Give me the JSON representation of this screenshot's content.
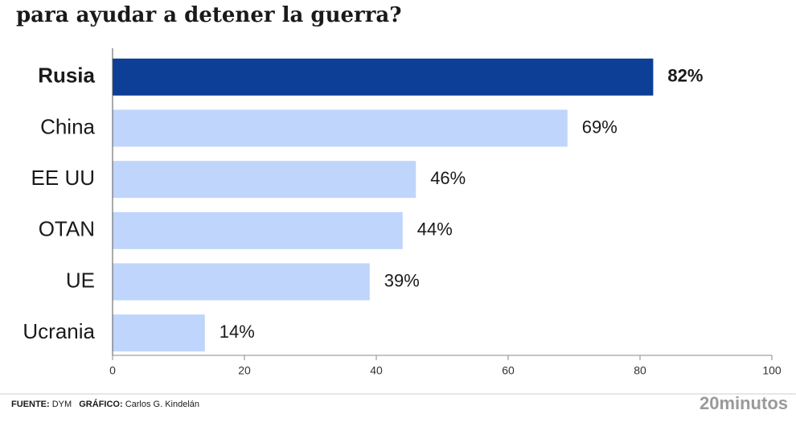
{
  "chart_data": {
    "type": "barh",
    "title": "para ayudar a detener la guerra?",
    "categories": [
      "Rusia",
      "China",
      "EE UU",
      "OTAN",
      "UE",
      "Ucrania"
    ],
    "values": [
      82,
      69,
      46,
      44,
      39,
      14
    ],
    "value_labels": [
      "82%",
      "69%",
      "46%",
      "44%",
      "39%",
      "14%"
    ],
    "colors": [
      "#0d3f96",
      "#bfd5fb",
      "#bfd5fb",
      "#bfd5fb",
      "#bfd5fb",
      "#bfd5fb"
    ],
    "highlight_index": 0,
    "xlim": [
      0,
      100
    ],
    "xticks": [
      0,
      20,
      40,
      60,
      80,
      100
    ]
  },
  "footer": {
    "source_label": "FUENTE:",
    "source": "DYM",
    "credit_label": "GRÁFICO:",
    "credit": "Carlos G. Kindelán",
    "brand": "20minutos"
  }
}
